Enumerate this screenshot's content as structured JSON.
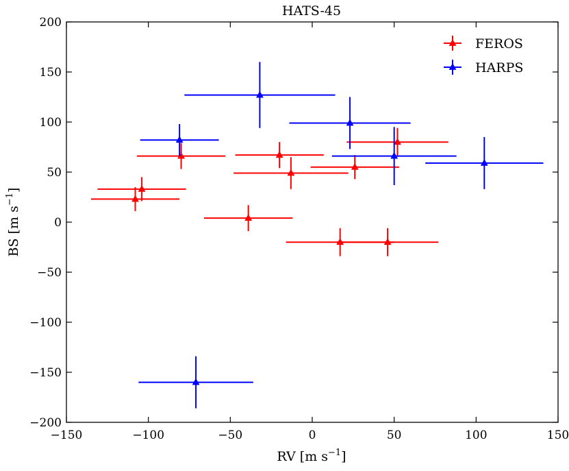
{
  "chart_data": {
    "type": "scatter",
    "title": "HATS-45",
    "xlabel": "RV [m s",
    "ylabel": "BS [m s",
    "unit_exponent": "−1",
    "xlim": [
      -150,
      150
    ],
    "ylim": [
      -200,
      200
    ],
    "x_ticks": [
      -150,
      -100,
      -50,
      0,
      50,
      100,
      150
    ],
    "y_ticks": [
      -200,
      -150,
      -100,
      -50,
      0,
      50,
      100,
      150,
      200
    ],
    "x_tick_labels": [
      "−150",
      "−100",
      "−50",
      "0",
      "50",
      "100",
      "150"
    ],
    "y_tick_labels": [
      "−200",
      "−150",
      "−100",
      "−50",
      "0",
      "50",
      "100",
      "150",
      "200"
    ],
    "grid": false,
    "legend_position": "top-right",
    "series": [
      {
        "name": "FEROS",
        "color": "#ff0000",
        "marker": "triangle",
        "points": [
          {
            "x": -108,
            "y": 23,
            "xerr": 27,
            "yerr": 12
          },
          {
            "x": -104,
            "y": 33,
            "xerr": 27,
            "yerr": 12
          },
          {
            "x": -80,
            "y": 66,
            "xerr": 27,
            "yerr": 13
          },
          {
            "x": -39,
            "y": 4,
            "xerr": 27,
            "yerr": 13
          },
          {
            "x": -20,
            "y": 67,
            "xerr": 27,
            "yerr": 13
          },
          {
            "x": -13,
            "y": 49,
            "xerr": 35,
            "yerr": 16
          },
          {
            "x": 17,
            "y": -20,
            "xerr": 33,
            "yerr": 14
          },
          {
            "x": 26,
            "y": 55,
            "xerr": 27,
            "yerr": 12
          },
          {
            "x": 46,
            "y": -20,
            "xerr": 31,
            "yerr": 14
          },
          {
            "x": 52,
            "y": 80,
            "xerr": 31,
            "yerr": 14
          }
        ]
      },
      {
        "name": "HARPS",
        "color": "#0000ff",
        "marker": "triangle",
        "points": [
          {
            "x": -81,
            "y": 82,
            "xerr": 24,
            "yerr": 16
          },
          {
            "x": -71,
            "y": -160,
            "xerr": 35,
            "yerr": 26
          },
          {
            "x": -32,
            "y": 127,
            "xerr": 46,
            "yerr": 33
          },
          {
            "x": 23,
            "y": 99,
            "xerr": 37,
            "yerr": 26
          },
          {
            "x": 50,
            "y": 66,
            "xerr": 38,
            "yerr": 29
          },
          {
            "x": 105,
            "y": 59,
            "xerr": 36,
            "yerr": 26
          }
        ]
      }
    ]
  }
}
